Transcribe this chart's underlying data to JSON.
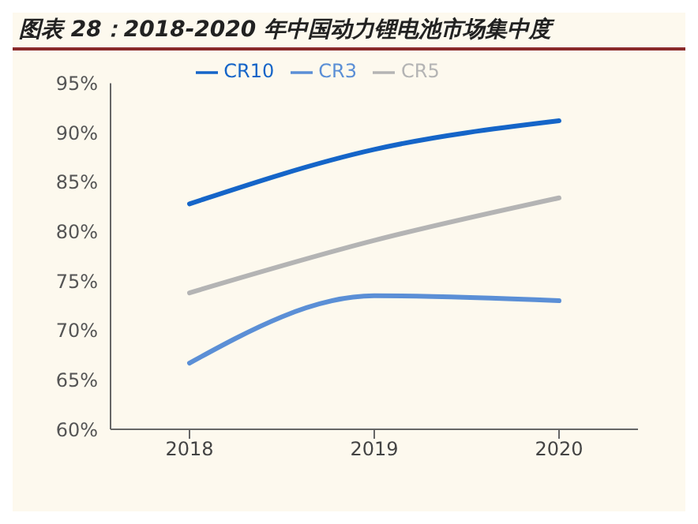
{
  "chart_data": {
    "type": "line",
    "title": "图表 28：2018-2020 年中国动力锂电池市场集中度",
    "categories": [
      "2018",
      "2019",
      "2020"
    ],
    "series": [
      {
        "name": "CR3",
        "color": "#5b8fd6",
        "values": [
          66.7,
          73.5,
          73.0
        ]
      },
      {
        "name": "CR5",
        "color": "#b4b4b4",
        "values": [
          73.8,
          79.1,
          83.4
        ]
      },
      {
        "name": "CR10",
        "color": "#1565c8",
        "values": [
          82.8,
          88.3,
          91.2
        ]
      }
    ],
    "ylim": [
      60,
      95
    ],
    "yticks": [
      {
        "value": 60,
        "label": "60%"
      },
      {
        "value": 65,
        "label": "65%"
      },
      {
        "value": 70,
        "label": "70%"
      },
      {
        "value": 75,
        "label": "75%"
      },
      {
        "value": 80,
        "label": "80%"
      },
      {
        "value": 85,
        "label": "85%"
      },
      {
        "value": 90,
        "label": "90%"
      },
      {
        "value": 95,
        "label": "95%"
      }
    ],
    "grid": false,
    "legend": "top",
    "marker": "none",
    "line_style": "solid"
  }
}
